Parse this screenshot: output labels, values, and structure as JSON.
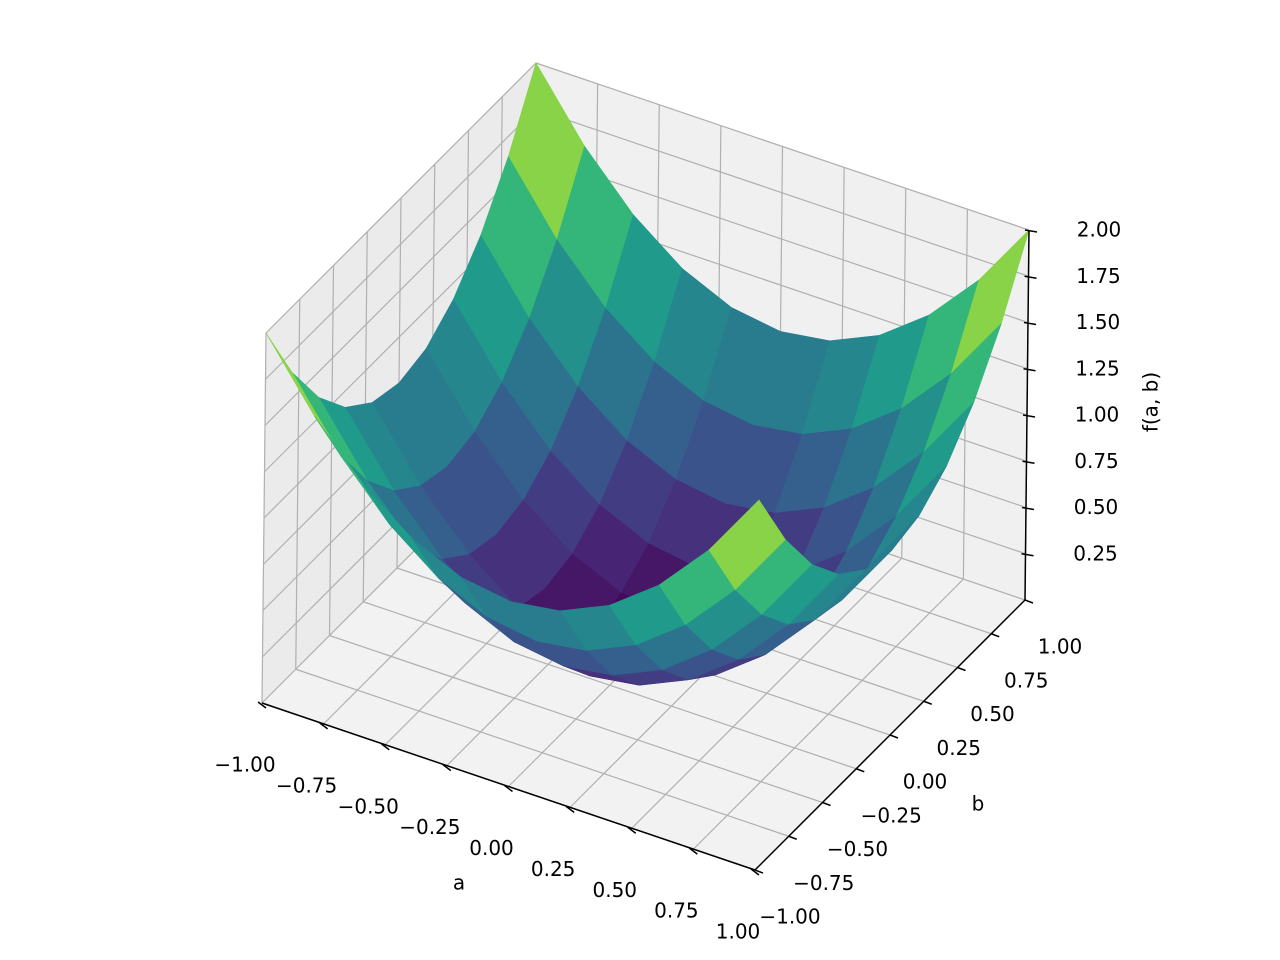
{
  "chart_data": {
    "type": "surface",
    "xlabel": "a",
    "ylabel": "b",
    "zlabel": "f(a, b)",
    "colormap": "viridis",
    "grid": true,
    "x": [
      -1,
      -0.8,
      -0.6,
      -0.4,
      -0.2,
      0,
      0.2,
      0.4,
      0.6,
      0.8,
      1
    ],
    "y": [
      -1,
      -0.8,
      -0.6,
      -0.4,
      -0.2,
      0,
      0.2,
      0.4,
      0.6,
      0.8,
      1
    ],
    "z": [
      [
        2,
        1.64,
        1.36,
        1.16,
        1.04,
        1,
        1.04,
        1.16,
        1.36,
        1.64,
        2
      ],
      [
        1.64,
        1.28,
        1,
        0.8,
        0.68,
        0.64,
        0.68,
        0.8,
        1,
        1.28,
        1.64
      ],
      [
        1.36,
        1,
        0.72,
        0.52,
        0.4,
        0.36,
        0.4,
        0.52,
        0.72,
        1,
        1.36
      ],
      [
        1.16,
        0.8,
        0.52,
        0.32,
        0.2,
        0.16,
        0.2,
        0.32,
        0.52,
        0.8,
        1.16
      ],
      [
        1.04,
        0.68,
        0.4,
        0.2,
        0.08,
        0.04,
        0.08,
        0.2,
        0.4,
        0.68,
        1.04
      ],
      [
        1,
        0.64,
        0.36,
        0.16,
        0.04,
        0,
        0.04,
        0.16,
        0.36,
        0.64,
        1
      ],
      [
        1.04,
        0.68,
        0.4,
        0.2,
        0.08,
        0.04,
        0.08,
        0.2,
        0.4,
        0.68,
        1.04
      ],
      [
        1.16,
        0.8,
        0.52,
        0.32,
        0.2,
        0.16,
        0.2,
        0.32,
        0.52,
        0.8,
        1.16
      ],
      [
        1.36,
        1,
        0.72,
        0.52,
        0.4,
        0.36,
        0.4,
        0.52,
        0.72,
        1,
        1.36
      ],
      [
        1.64,
        1.28,
        1,
        0.8,
        0.68,
        0.64,
        0.68,
        0.8,
        1,
        1.28,
        1.64
      ],
      [
        2,
        1.64,
        1.36,
        1.16,
        1.04,
        1,
        1.04,
        1.16,
        1.36,
        1.64,
        2
      ]
    ],
    "xlim": [
      -1,
      1
    ],
    "ylim": [
      -1,
      1
    ],
    "zlim": [
      0,
      2
    ],
    "xticks": [
      {
        "value": -1,
        "label": "−1.00"
      },
      {
        "value": -0.75,
        "label": "−0.75"
      },
      {
        "value": -0.5,
        "label": "−0.50"
      },
      {
        "value": -0.25,
        "label": "−0.25"
      },
      {
        "value": 0,
        "label": "0.00"
      },
      0.25,
      {
        "value": 0.5,
        "label": "0.50"
      },
      0.75,
      {
        "value": 1,
        "label": "1.00"
      }
    ],
    "yticks": [
      {
        "value": -1,
        "label": "−1.00"
      },
      {
        "value": -0.75,
        "label": "−0.75"
      },
      {
        "value": -0.5,
        "label": "−0.50"
      },
      {
        "value": -0.25,
        "label": "−0.25"
      },
      {
        "value": 0,
        "label": "0.00"
      },
      0.25,
      {
        "value": 0.5,
        "label": "0.50"
      },
      0.75,
      {
        "value": 1,
        "label": "1.00"
      }
    ],
    "zticks": [
      0.25,
      {
        "value": 0.5,
        "label": "0.50"
      },
      0.75,
      {
        "value": 1,
        "label": "1.00"
      },
      1.25,
      {
        "value": 1.5,
        "label": "1.50"
      },
      1.75,
      {
        "value": 2,
        "label": "2.00"
      }
    ]
  }
}
